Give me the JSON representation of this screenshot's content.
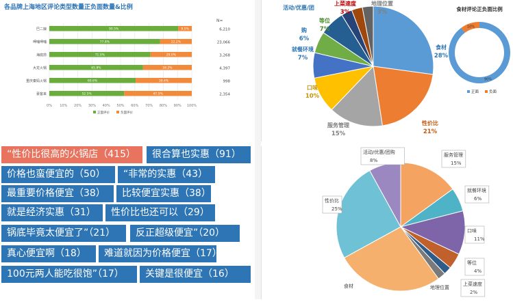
{
  "chart_data": [
    {
      "type": "bar",
      "subtype": "stacked-horizontal-100",
      "title": "各品牌上海地区评论类型数量正负面数量&比例",
      "n_header": "N=",
      "categories": [
        "巴二娘",
        "呷哺呷哺",
        "海底捞",
        "大龙火锅",
        "重庆秦妈火锅",
        "豪客来"
      ],
      "n_values": [
        "6,210",
        "23,066",
        "3,268",
        "4,397",
        "998",
        "2,354"
      ],
      "series": [
        {
          "name": "正面评价",
          "values": [
            90.5,
            77.8,
            71.0,
            65.8,
            60.6,
            52.5
          ],
          "color": "#6aad3c"
        },
        {
          "name": "负面评价",
          "values": [
            9.5,
            22.2,
            29.0,
            34.2,
            39.4,
            47.5
          ],
          "color": "#f28a3c"
        }
      ],
      "xticks": [
        "0%",
        "10%",
        "20%",
        "30%",
        "40%",
        "50%",
        "60%",
        "70%",
        "80%",
        "90%",
        "100%"
      ],
      "legend_position": "bottom"
    },
    {
      "type": "pie",
      "categories": [
        "食材",
        "性价比",
        "服务管理",
        "口味",
        "就餐环境",
        "购",
        "等位",
        "活动/优惠/团",
        "上菜速度",
        "地理位置"
      ],
      "labels": [
        "食材",
        "性价比",
        "服务管理",
        "口味",
        "就餐环境",
        "购",
        "等位",
        "活动/优惠/团",
        "上菜速度",
        "地理位置"
      ],
      "values": [
        28,
        21,
        15,
        10,
        7,
        6,
        7,
        3,
        3,
        3
      ],
      "value_labels": [
        "28%",
        "21%",
        "15%",
        "10%",
        "7%",
        "6%",
        "7%",
        "",
        "3%",
        "3%"
      ],
      "colors": [
        "#5b9bd5",
        "#ed7d31",
        "#a5a5a5",
        "#ffc000",
        "#4472c4",
        "#70ad47",
        "#255e91",
        "#264478",
        "#9e480e",
        "#636363"
      ]
    },
    {
      "type": "pie",
      "subtype": "donut",
      "title": "食材评论正负面比例",
      "categories": [
        "正面",
        "负面"
      ],
      "values": [
        90,
        10
      ],
      "value_labels": [
        "90%",
        "10%"
      ],
      "colors": [
        "#5b9bd5",
        "#ed7d31"
      ],
      "legend_position": "bottom"
    },
    {
      "type": "pie",
      "categories": [
        "服务管理",
        "就餐环境",
        "口味",
        "等位",
        "上菜速度",
        "地理位置",
        "食材",
        "性价比",
        "活动/优惠/团购"
      ],
      "values": [
        15,
        6,
        11,
        4,
        2,
        2,
        27,
        25,
        8
      ],
      "value_labels": [
        "15%",
        "6%",
        "11%",
        "4%",
        "2%",
        "",
        "",
        "25%",
        "8%"
      ],
      "colors": [
        "#f4a460",
        "#4fb3c8",
        "#7e64a8",
        "#c0602c",
        "#2e5c8a",
        "#7a7a7a",
        "#f5b06e",
        "#6fc1d6",
        "#9b88c0"
      ]
    }
  ],
  "tags": {
    "items": [
      {
        "text": "“性价比很高的火锅店（415）",
        "color": "#e8735e"
      },
      {
        "text": "很合算也实惠（91）",
        "color": "#2e75b6"
      },
      {
        "text": "价格也蛮便宜的（50）",
        "color": "#2e75b6"
      },
      {
        "text": "“非常的实惠（43）",
        "color": "#2e75b6"
      },
      {
        "text": "最重要价格便宜（38）",
        "color": "#2e75b6"
      },
      {
        "text": "比较便宜实惠（38）",
        "color": "#2e75b6"
      },
      {
        "text": "就是经济实惠（31）",
        "color": "#2e75b6"
      },
      {
        "text": "性价比也还可以（29）",
        "color": "#2e75b6"
      },
      {
        "text": "锅底毕竟太便宜了”（21）",
        "color": "#2e75b6"
      },
      {
        "text": "反正超级便宜”（20）",
        "color": "#2e75b6"
      },
      {
        "text": "真心便宜啊（18）",
        "color": "#2e75b6"
      },
      {
        "text": "难道就因为价格便宜（17）",
        "color": "#2e75b6"
      },
      {
        "text": "100元两人能吃很饱”（17）",
        "color": "#2e75b6"
      },
      {
        "text": "关键是很便宜（16）",
        "color": "#2e75b6"
      }
    ]
  }
}
